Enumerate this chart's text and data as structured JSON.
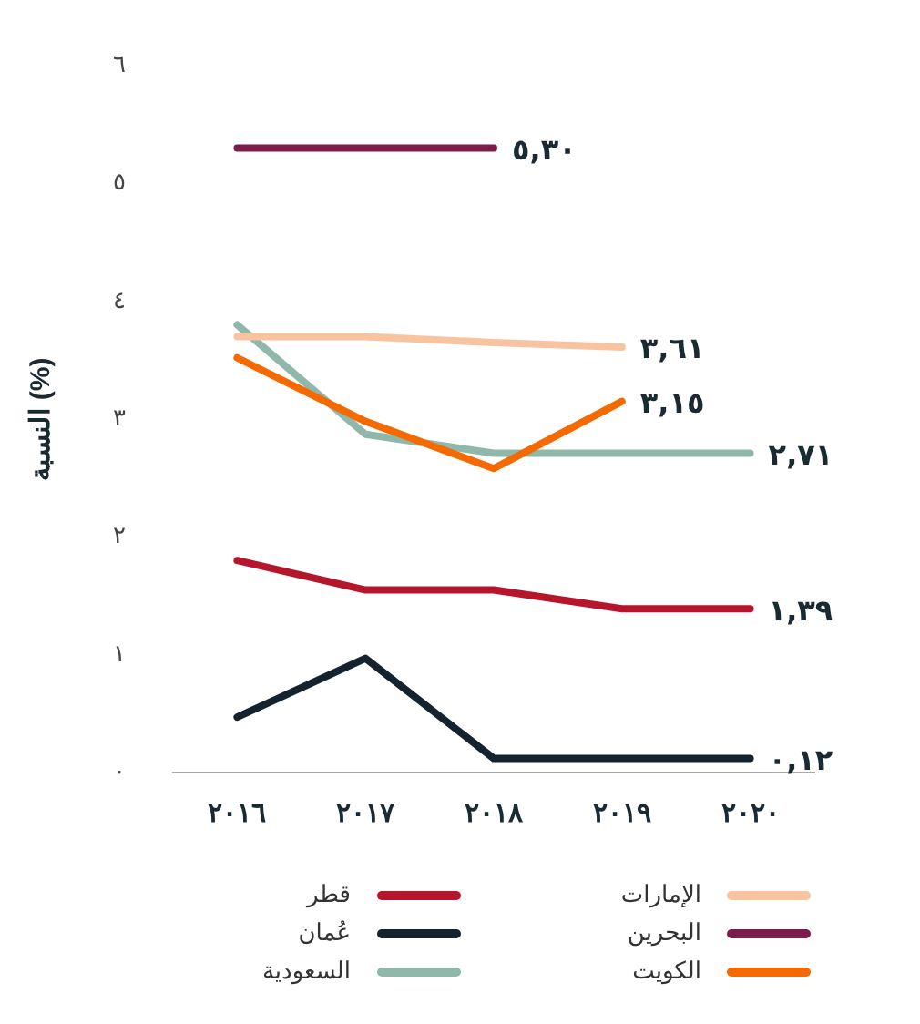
{
  "chart_data": {
    "type": "line",
    "ylabel": "النسبة (%)",
    "categories": [
      "٢٠١٦",
      "٢٠١٧",
      "٢٠١٨",
      "٢٠١٩",
      "٢٠٢٠"
    ],
    "ylim": [
      0,
      6
    ],
    "yticks": [
      {
        "value": 0,
        "label": "٠"
      },
      {
        "value": 1,
        "label": "١"
      },
      {
        "value": 2,
        "label": "٢"
      },
      {
        "value": 3,
        "label": "٣"
      },
      {
        "value": 4,
        "label": "٤"
      },
      {
        "value": 5,
        "label": "٥"
      },
      {
        "value": 6,
        "label": "٦"
      }
    ],
    "marker": "none",
    "line_style": "solid",
    "legend": "bottom",
    "series": [
      {
        "name": "الإمارات",
        "color": "#f8c4a0",
        "values": [
          3.7,
          3.7,
          3.65,
          3.61,
          null
        ],
        "value_labels": [
          null,
          null,
          null,
          "٣,٦١",
          null
        ]
      },
      {
        "name": "قطر",
        "color": "#b5162c",
        "values": [
          1.8,
          1.55,
          1.55,
          1.39,
          1.39
        ],
        "value_labels": [
          null,
          null,
          null,
          null,
          "١,٣٩"
        ]
      },
      {
        "name": "البحرين",
        "color": "#7b1c4a",
        "values": [
          5.3,
          5.3,
          5.3,
          null,
          null
        ],
        "value_labels": [
          null,
          null,
          "٥,٣٠",
          null,
          null
        ]
      },
      {
        "name": "عُمان",
        "color": "#15232e",
        "values": [
          0.47,
          0.97,
          0.12,
          0.12,
          0.12
        ],
        "value_labels": [
          null,
          null,
          null,
          null,
          "٠,١٢"
        ]
      },
      {
        "name": "الكويت",
        "color": "#f56a00",
        "values": [
          3.52,
          2.98,
          2.58,
          3.15,
          null
        ],
        "value_labels": [
          null,
          null,
          null,
          "٣,١٥",
          null
        ]
      },
      {
        "name": "السعودية",
        "color": "#8fb8aa",
        "values": [
          3.8,
          2.87,
          2.71,
          2.71,
          2.71
        ],
        "value_labels": [
          null,
          null,
          null,
          null,
          "٢,٧١"
        ]
      }
    ]
  }
}
